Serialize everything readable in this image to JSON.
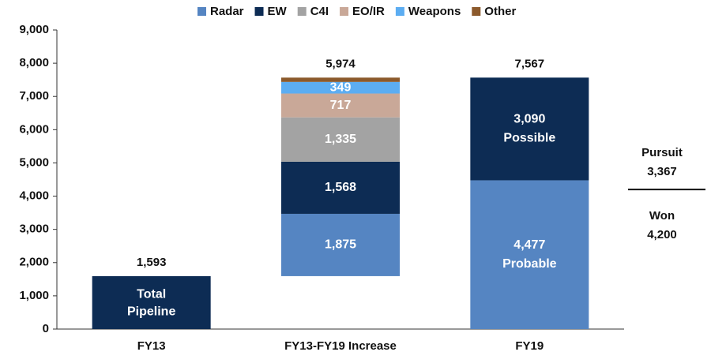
{
  "chart_data": {
    "type": "waterfall",
    "series": [
      {
        "name": "Radar",
        "color": "#5585c2"
      },
      {
        "name": "EW",
        "color": "#0d2c54"
      },
      {
        "name": "C4I",
        "color": "#a3a3a3"
      },
      {
        "name": "EO/IR",
        "color": "#c9a898"
      },
      {
        "name": "Weapons",
        "color": "#5cadf2"
      },
      {
        "name": "Other",
        "color": "#8c5a2c"
      }
    ],
    "categories": [
      "FY13",
      "FY13-FY19 Increase",
      "FY19"
    ],
    "floating": [
      false,
      true,
      false
    ],
    "stacks": [
      {
        "values": [
          1593
        ],
        "colors": [
          "#0d2c54"
        ],
        "texts": [
          "Total Pipeline"
        ]
      },
      {
        "values": [
          1875,
          1568,
          1335,
          717,
          349,
          130
        ],
        "series_index": [
          0,
          1,
          2,
          3,
          4,
          5
        ],
        "value_labels": [
          "1,875",
          "1,568",
          "1,335",
          "717",
          "349",
          null
        ]
      },
      {
        "values": [
          4477,
          3090
        ],
        "colors": [
          "#5585c2",
          "#0d2c54"
        ],
        "value_labels": [
          "4,477",
          "3,090"
        ],
        "texts": [
          "Probable",
          "Possible"
        ]
      }
    ],
    "totals": [
      1593,
      5974,
      7567
    ],
    "total_labels": [
      "1,593",
      "5,974",
      "7,567"
    ],
    "annotations": [
      {
        "text": "Pursuit",
        "value": 3367,
        "value_label": "3,367"
      },
      {
        "text": "Won",
        "value": 4200,
        "value_label": "4,200"
      }
    ],
    "ylim": [
      0,
      9000
    ],
    "yticks": [
      {
        "value": 0,
        "label": "0"
      },
      {
        "value": 1000,
        "label": "1,000"
      },
      {
        "value": 2000,
        "label": "2,000"
      },
      {
        "value": 3000,
        "label": "3,000"
      },
      {
        "value": 4000,
        "label": "4,000"
      },
      {
        "value": 5000,
        "label": "5,000"
      },
      {
        "value": 6000,
        "label": "6,000"
      },
      {
        "value": 7000,
        "label": "7,000"
      },
      {
        "value": 8000,
        "label": "8,000"
      },
      {
        "value": 9000,
        "label": "9,000"
      }
    ]
  }
}
